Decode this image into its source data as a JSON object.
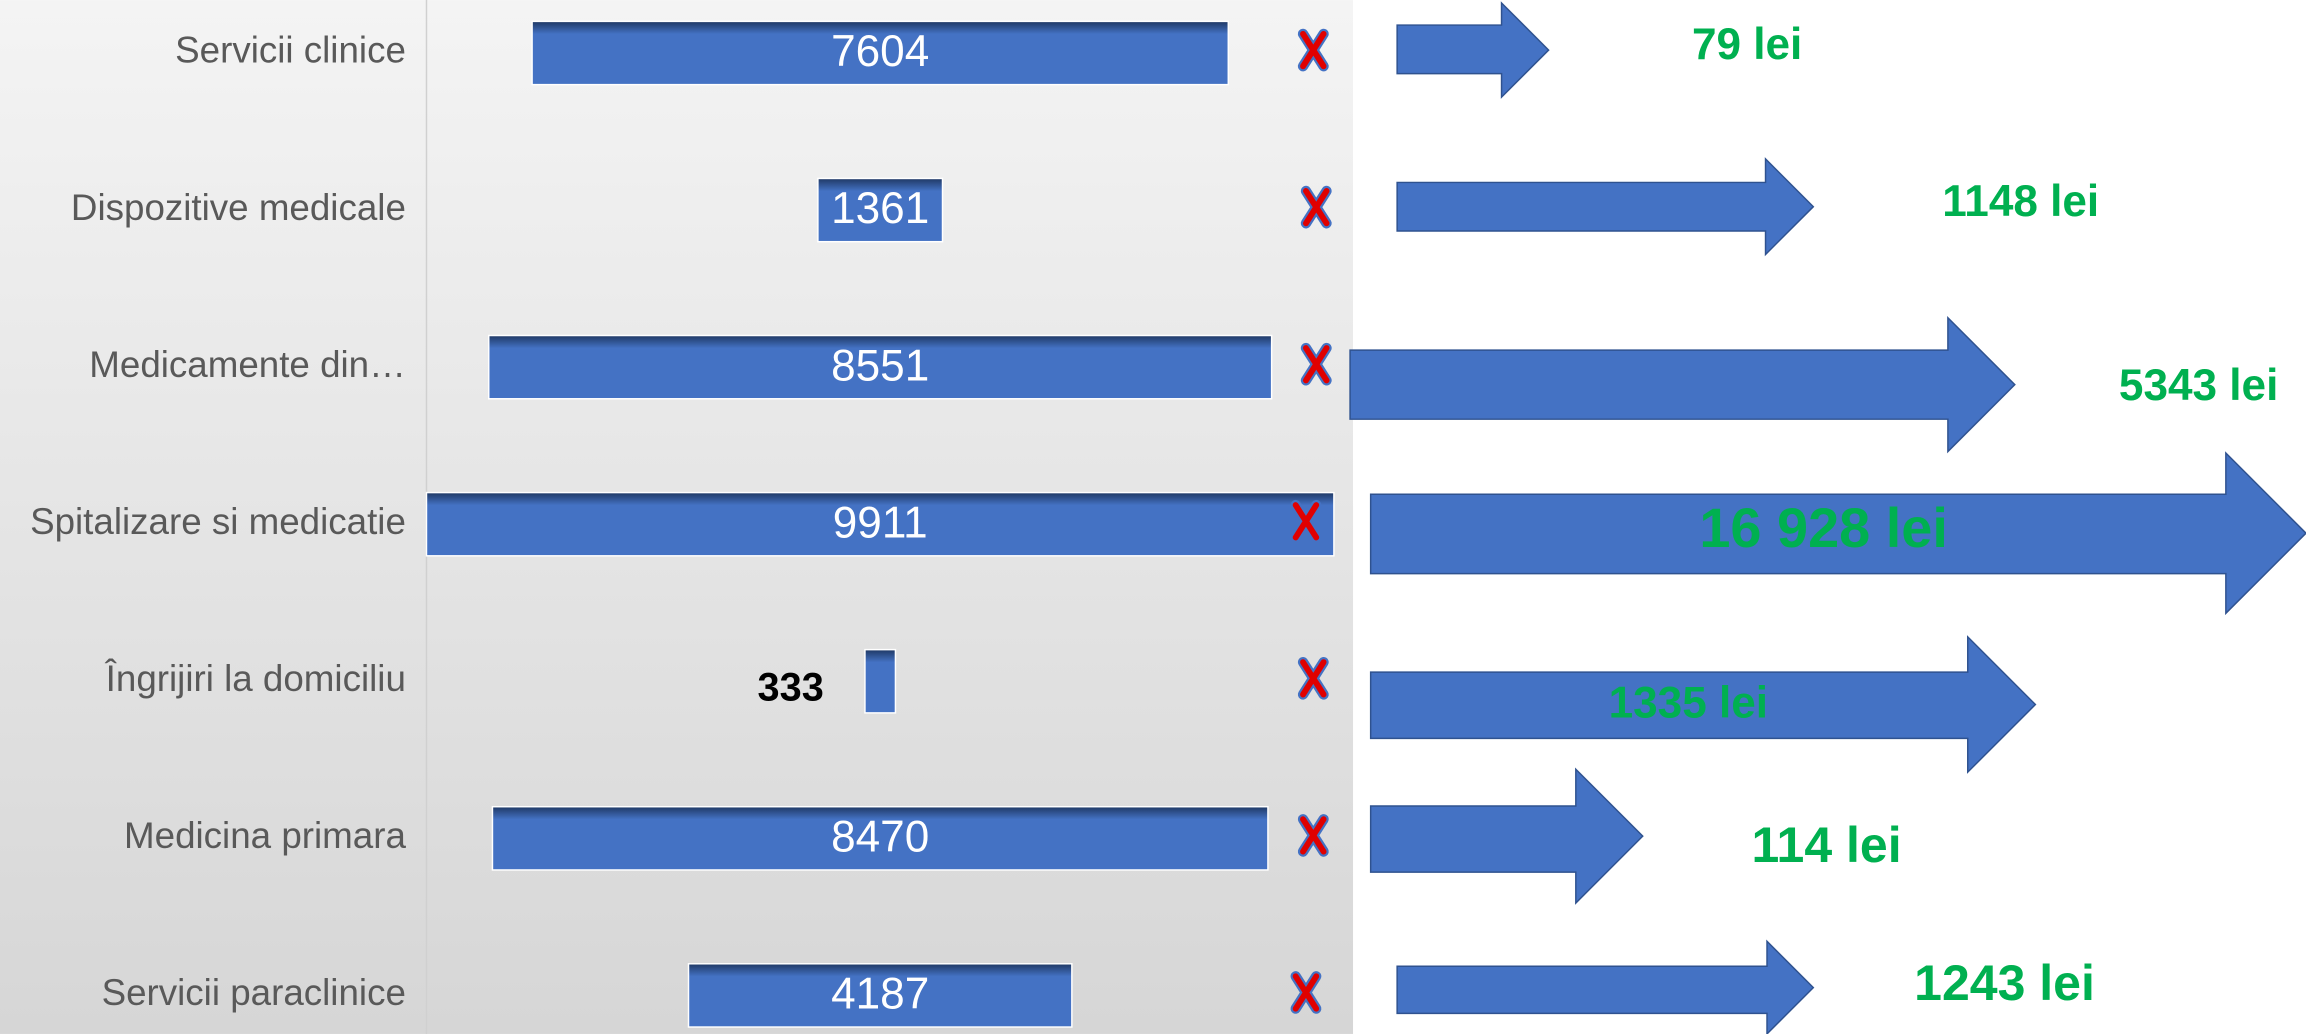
{
  "chart_data": {
    "type": "bar",
    "categories": [
      "Servicii clinice",
      "Dispozitive medicale",
      "Medicamente din…",
      "Spitalizare si medicatie",
      "Îngrijiri la domiciliu",
      "Medicina primara",
      "Servicii paraclinice"
    ],
    "values": [
      7604,
      1361,
      8551,
      9911,
      333,
      8470,
      4187
    ],
    "color": "#4472c4",
    "costs": {
      "values": [
        79,
        1148,
        5343,
        16928,
        1335,
        114,
        1243
      ],
      "value_labels": [
        "79 lei",
        "1148 lei",
        "5343 lei",
        "16 928 lei",
        "1335 lei",
        "114 lei",
        "1243 lei"
      ],
      "color": "#4472c4",
      "label_color": "#00b050"
    }
  }
}
